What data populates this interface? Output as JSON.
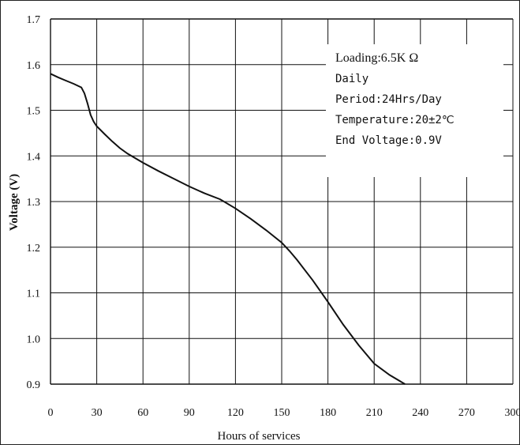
{
  "chart_data": {
    "type": "line",
    "xlabel": "Hours of services",
    "ylabel": "Voltage (V)",
    "xlim": [
      0,
      300
    ],
    "ylim": [
      0.9,
      1.7
    ],
    "x_ticks": [
      "0",
      "30",
      "60",
      "90",
      "120",
      "150",
      "180",
      "210",
      "240",
      "270",
      "300"
    ],
    "y_ticks": [
      "0.9",
      "1.0",
      "1.1",
      "1.2",
      "1.3",
      "1.4",
      "1.5",
      "1.6",
      "1.7"
    ],
    "grid": true,
    "series": [
      {
        "x": [
          0,
          5,
          10,
          15,
          20,
          22,
          24,
          26,
          28,
          30,
          35,
          40,
          45,
          50,
          60,
          70,
          80,
          90,
          100,
          110,
          120,
          130,
          140,
          150,
          155,
          160,
          170,
          180,
          190,
          200,
          210,
          220,
          230
        ],
        "y": [
          1.58,
          1.572,
          1.565,
          1.558,
          1.55,
          1.537,
          1.515,
          1.49,
          1.475,
          1.465,
          1.448,
          1.432,
          1.417,
          1.405,
          1.385,
          1.367,
          1.35,
          1.333,
          1.318,
          1.305,
          1.285,
          1.262,
          1.237,
          1.21,
          1.192,
          1.172,
          1.128,
          1.08,
          1.03,
          0.985,
          0.945,
          0.92,
          0.9
        ]
      }
    ],
    "annotations": [
      "Loading:6.5K Ω",
      "Daily",
      "Period:24Hrs/Day",
      "Temperature:20±2℃",
      "End Voltage:0.9V"
    ],
    "colors": {
      "line": "#111111",
      "grid": "#111111"
    }
  }
}
